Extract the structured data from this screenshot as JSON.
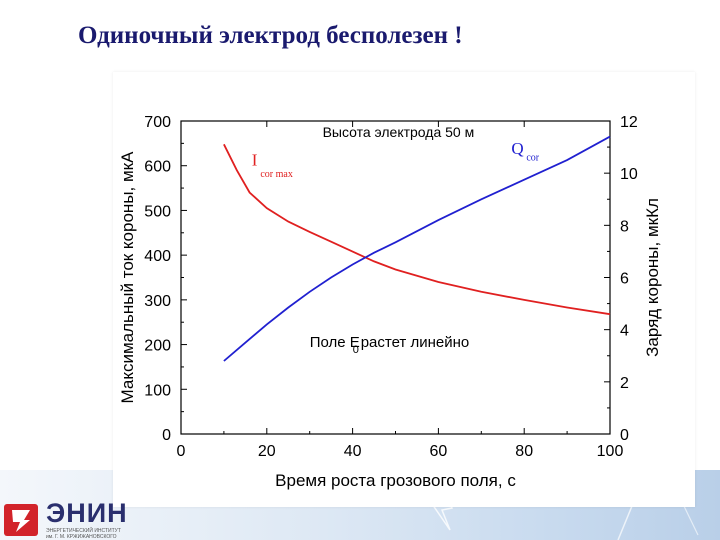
{
  "slide": {
    "title": "Одиночный электрод бесполезен !"
  },
  "logo": {
    "name": "ЭНИН",
    "subtitle_line1": "ЭНЕРГЕТИЧЕСКИЙ ИНСТИТУТ",
    "subtitle_line2": "им. Г. М. КРЖИЖАНОВСКОГО",
    "colors": {
      "mark": "#d2232a",
      "text": "#2a2f6e"
    }
  },
  "chart_data": {
    "type": "line",
    "xlabel": "Время роста грозового поля,  с",
    "ylabel_left": "Максимальный ток короны,  мкА",
    "ylabel_right": "Заряд короны,  мкКл",
    "xlim": [
      0,
      100
    ],
    "ylim_left": [
      0,
      700
    ],
    "ylim_right": [
      0,
      12
    ],
    "x_ticks": [
      0,
      20,
      40,
      60,
      80,
      100
    ],
    "y_ticks_left": [
      0,
      100,
      200,
      300,
      400,
      500,
      600,
      700
    ],
    "y_ticks_right": [
      0,
      2,
      4,
      6,
      8,
      10,
      12
    ],
    "annotations": {
      "top": "Высота электрода 50 м",
      "middle": "Поле E",
      "middle_sub": "0",
      "middle_rest": " растет линейно"
    },
    "grid": false,
    "series": [
      {
        "name": "I",
        "name_sub": "cor max",
        "axis": "left",
        "color": "#e02020",
        "x": [
          10,
          13,
          16,
          20,
          25,
          30,
          35,
          40,
          45,
          50,
          60,
          70,
          80,
          90,
          100
        ],
        "y": [
          648,
          590,
          540,
          505,
          475,
          452,
          430,
          408,
          386,
          368,
          340,
          318,
          300,
          283,
          268
        ]
      },
      {
        "name": "Q",
        "name_sub": "cor",
        "axis": "right",
        "color": "#2020d0",
        "x": [
          10,
          15,
          20,
          25,
          30,
          35,
          40,
          45,
          50,
          60,
          70,
          80,
          90,
          100
        ],
        "y": [
          2.8,
          3.5,
          4.2,
          4.85,
          5.45,
          6.0,
          6.5,
          6.95,
          7.35,
          8.2,
          9.0,
          9.75,
          10.5,
          11.4
        ]
      }
    ]
  }
}
